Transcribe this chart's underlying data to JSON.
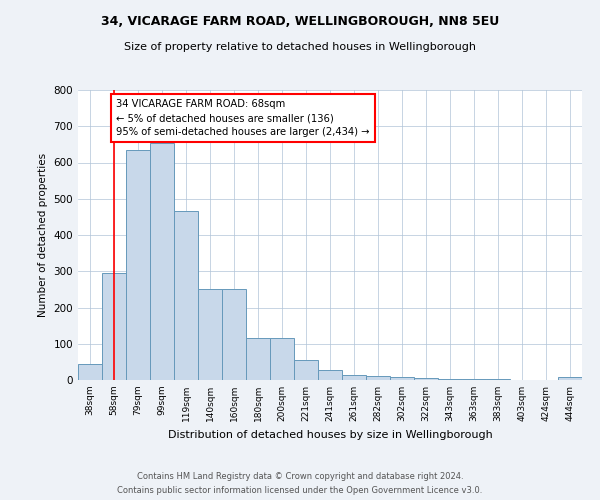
{
  "title1": "34, VICARAGE FARM ROAD, WELLINGBOROUGH, NN8 5EU",
  "title2": "Size of property relative to detached houses in Wellingborough",
  "xlabel": "Distribution of detached houses by size in Wellingborough",
  "ylabel": "Number of detached properties",
  "categories": [
    "38sqm",
    "58sqm",
    "79sqm",
    "99sqm",
    "119sqm",
    "140sqm",
    "160sqm",
    "180sqm",
    "200sqm",
    "221sqm",
    "241sqm",
    "261sqm",
    "282sqm",
    "302sqm",
    "322sqm",
    "343sqm",
    "363sqm",
    "383sqm",
    "403sqm",
    "424sqm",
    "444sqm"
  ],
  "values": [
    45,
    295,
    635,
    655,
    465,
    250,
    250,
    115,
    115,
    55,
    27,
    15,
    12,
    8,
    5,
    4,
    3,
    2,
    1,
    1,
    8
  ],
  "bar_color": "#c8d8ea",
  "bar_edge_color": "#6699bb",
  "annotation_text": "34 VICARAGE FARM ROAD: 68sqm\n← 5% of detached houses are smaller (136)\n95% of semi-detached houses are larger (2,434) →",
  "annotation_box_color": "white",
  "annotation_box_edge_color": "red",
  "vline_x": 1.0,
  "vline_color": "red",
  "ylim": [
    0,
    800
  ],
  "yticks": [
    0,
    100,
    200,
    300,
    400,
    500,
    600,
    700,
    800
  ],
  "footer1": "Contains HM Land Registry data © Crown copyright and database right 2024.",
  "footer2": "Contains public sector information licensed under the Open Government Licence v3.0.",
  "background_color": "#eef2f7",
  "plot_background_color": "white",
  "grid_color": "#b0c4d8"
}
